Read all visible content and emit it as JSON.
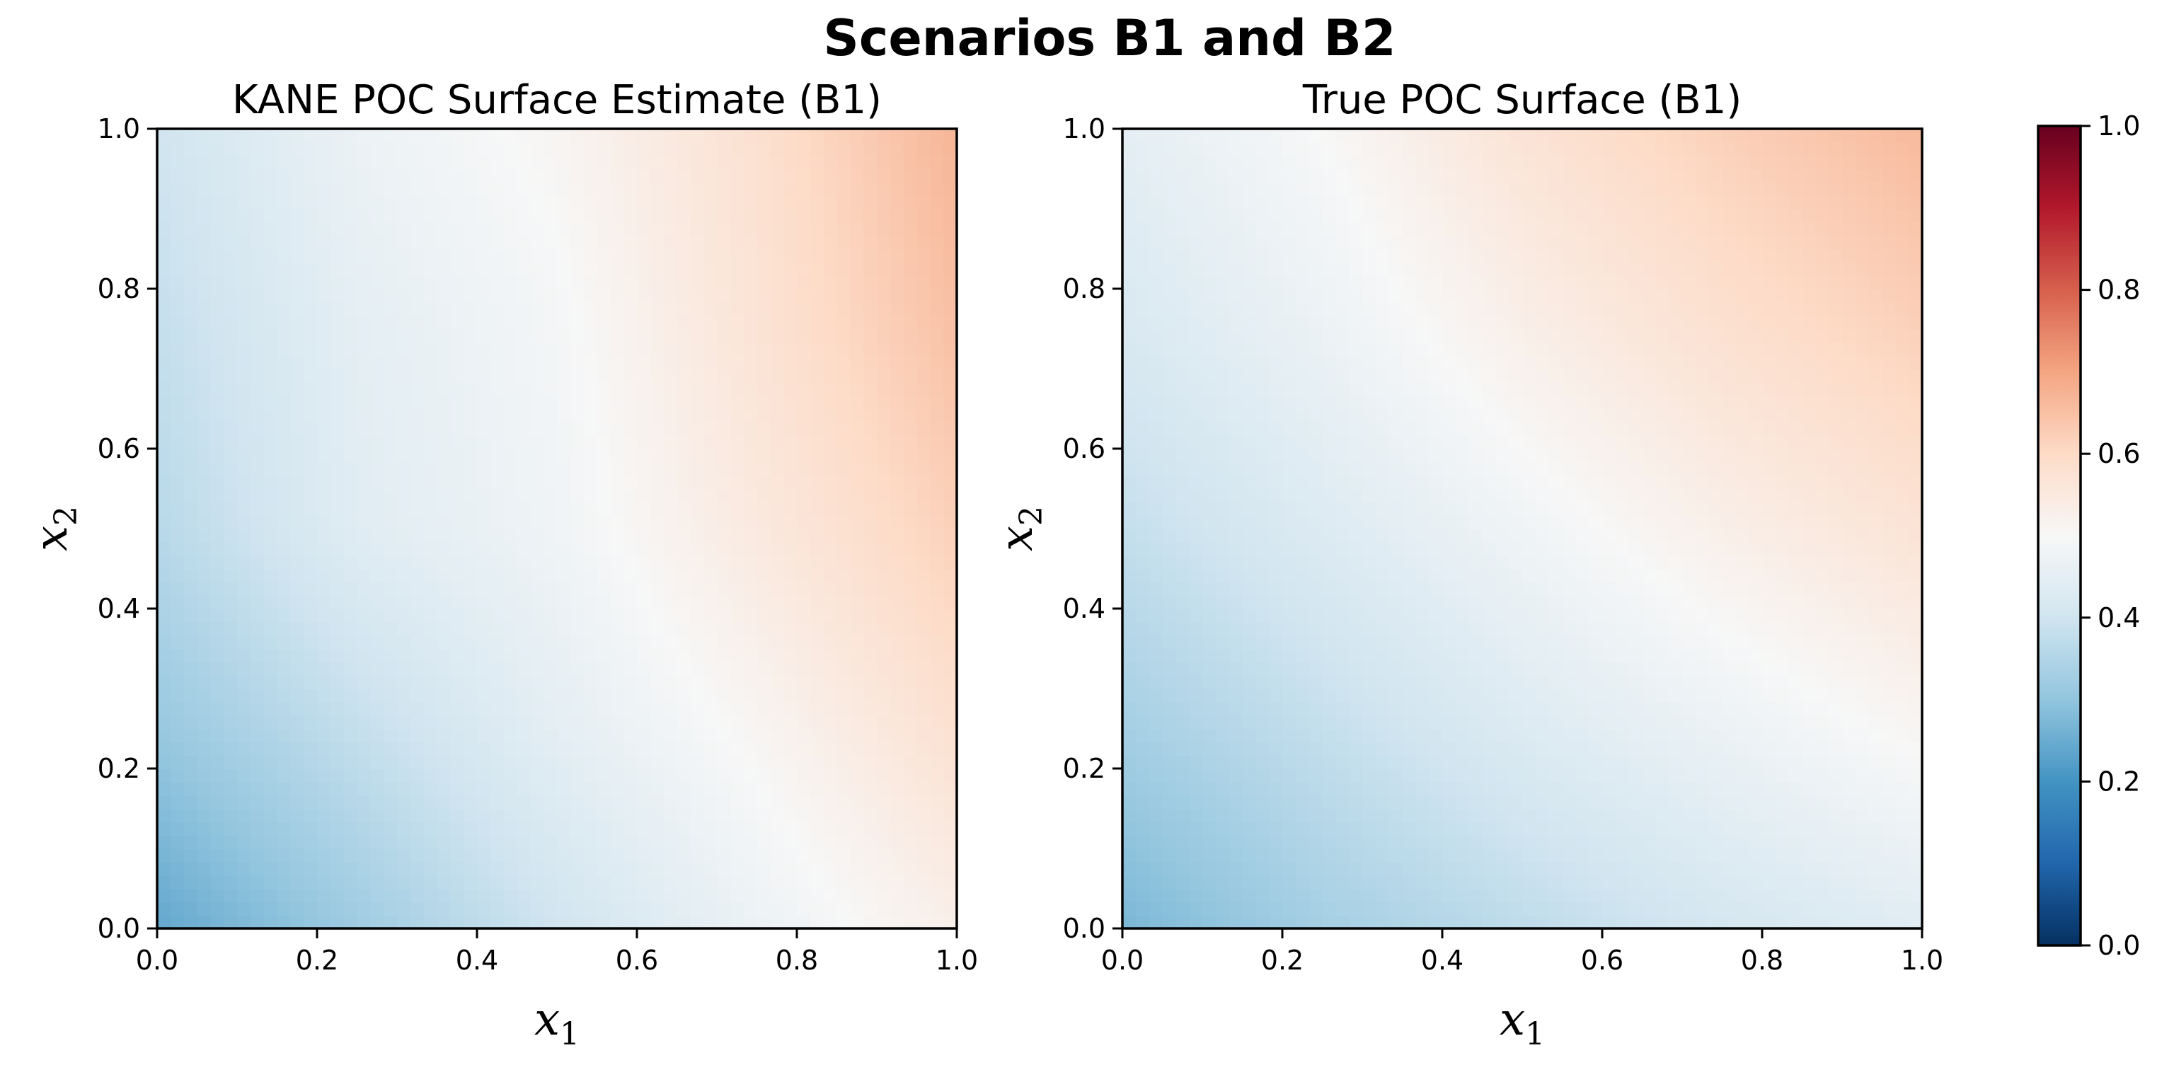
{
  "figure": {
    "suptitle": "Scenarios B1 and B2"
  },
  "chart_data": [
    {
      "type": "heatmap",
      "title": "KANE POC Surface Estimate (B1)",
      "xlabel_base": "x",
      "xlabel_sub": "1",
      "ylabel_base": "x",
      "ylabel_sub": "2",
      "xlim": [
        0,
        1
      ],
      "ylim": [
        0,
        1
      ],
      "x_ticks": [
        "0.0",
        "0.2",
        "0.4",
        "0.6",
        "0.8",
        "1.0"
      ],
      "y_ticks": [
        "0.0",
        "0.2",
        "0.4",
        "0.6",
        "0.8",
        "1.0"
      ],
      "colormap": "RdBu_r",
      "vmin": 0,
      "vmax": 1,
      "grid_x": [
        0,
        0.25,
        0.5,
        0.75,
        1
      ],
      "grid_y": [
        0,
        0.25,
        0.5,
        0.75,
        1
      ],
      "z": [
        [
          0.24,
          0.32,
          0.4,
          0.47,
          0.53
        ],
        [
          0.31,
          0.38,
          0.45,
          0.51,
          0.58
        ],
        [
          0.36,
          0.44,
          0.48,
          0.55,
          0.62
        ],
        [
          0.38,
          0.45,
          0.49,
          0.57,
          0.65
        ],
        [
          0.4,
          0.47,
          0.51,
          0.58,
          0.67
        ]
      ]
    },
    {
      "type": "heatmap",
      "title": "True POC Surface (B1)",
      "xlabel_base": "x",
      "xlabel_sub": "1",
      "ylabel_base": "x",
      "ylabel_sub": "2",
      "xlim": [
        0,
        1
      ],
      "ylim": [
        0,
        1
      ],
      "x_ticks": [
        "0.0",
        "0.2",
        "0.4",
        "0.6",
        "0.8",
        "1.0"
      ],
      "y_ticks": [
        "0.0",
        "0.2",
        "0.4",
        "0.6",
        "0.8",
        "1.0"
      ],
      "colormap": "RdBu_r",
      "vmin": 0,
      "vmax": 1,
      "grid_x": [
        0,
        0.25,
        0.5,
        0.75,
        1
      ],
      "grid_y": [
        0,
        0.25,
        0.5,
        0.75,
        1
      ],
      "z": [
        [
          0.27,
          0.33,
          0.37,
          0.41,
          0.44
        ],
        [
          0.33,
          0.38,
          0.43,
          0.47,
          0.51
        ],
        [
          0.38,
          0.43,
          0.48,
          0.53,
          0.57
        ],
        [
          0.42,
          0.47,
          0.53,
          0.58,
          0.62
        ],
        [
          0.45,
          0.5,
          0.57,
          0.62,
          0.66
        ]
      ]
    }
  ],
  "colorbar": {
    "colormap": "RdBu_r",
    "vmin": 0,
    "vmax": 1,
    "ticks": [
      "0.0",
      "0.2",
      "0.4",
      "0.6",
      "0.8",
      "1.0"
    ]
  }
}
